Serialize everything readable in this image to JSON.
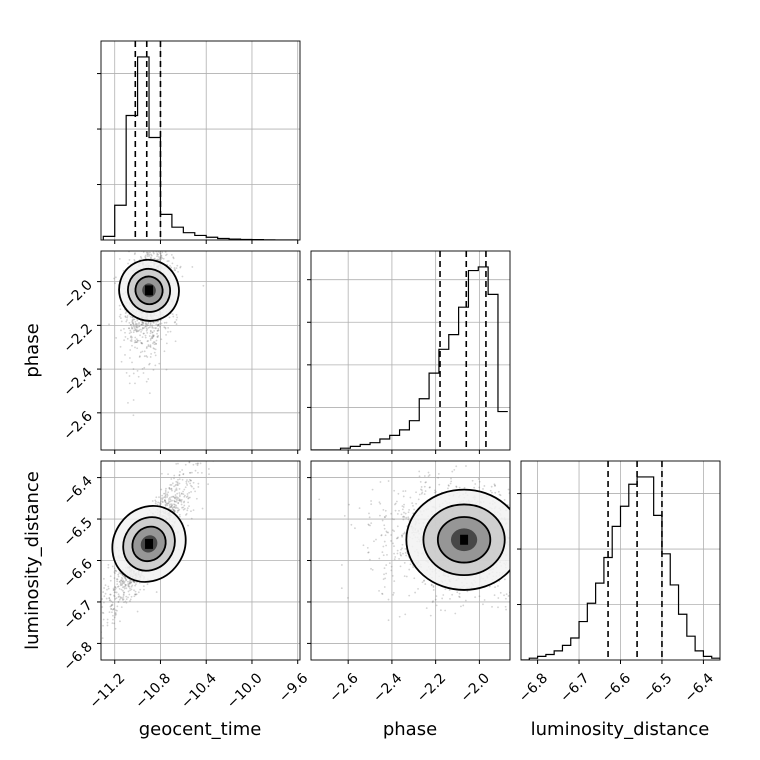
{
  "chart_data": {
    "type": "corner",
    "parameters": [
      {
        "name": "geocent_time",
        "range": [
          -11.32,
          -9.58
        ],
        "ticks": [
          -11.2,
          -10.8,
          -10.4,
          -10.0,
          -9.6
        ],
        "tick_labels": [
          "−11.2",
          "−10.8",
          "−10.4",
          "−10.0",
          "−9.6"
        ],
        "quantiles": [
          -11.02,
          -10.92,
          -10.8
        ],
        "histogram": {
          "bin_edges": [
            -11.3,
            -11.2,
            -11.1,
            -11.0,
            -10.9,
            -10.8,
            -10.7,
            -10.6,
            -10.5,
            -10.4,
            -10.3,
            -10.2,
            -10.1,
            -10.0,
            -9.9,
            -9.8,
            -9.7,
            -9.6
          ],
          "counts": [
            0.02,
            0.19,
            0.68,
            1.0,
            0.56,
            0.14,
            0.07,
            0.04,
            0.025,
            0.015,
            0.008,
            0.005,
            0.003,
            0.002,
            0.001,
            0.0,
            0.0
          ]
        },
        "diag_gridlines": 3
      },
      {
        "name": "phase",
        "range": [
          -2.77,
          -1.86
        ],
        "ticks": [
          -2.6,
          -2.4,
          -2.2,
          -2.0
        ],
        "tick_labels": [
          "−2.6",
          "−2.4",
          "−2.2",
          "−2.0"
        ],
        "quantiles": [
          -2.18,
          -2.06,
          -1.97
        ],
        "histogram": {
          "bin_edges": [
            -2.77,
            -2.725,
            -2.68,
            -2.635,
            -2.59,
            -2.545,
            -2.5,
            -2.455,
            -2.41,
            -2.365,
            -2.32,
            -2.275,
            -2.23,
            -2.185,
            -2.14,
            -2.095,
            -2.05,
            -2.005,
            -1.96,
            -1.915,
            -1.87
          ],
          "counts": [
            0.0,
            0.0,
            0.0,
            0.01,
            0.02,
            0.03,
            0.04,
            0.06,
            0.08,
            0.11,
            0.16,
            0.28,
            0.42,
            0.55,
            0.63,
            0.78,
            0.98,
            1.0,
            0.85,
            0.21
          ]
        },
        "diag_gridlines": 4
      },
      {
        "name": "luminosity_distance",
        "range": [
          -6.84,
          -6.36
        ],
        "ticks": [
          -6.8,
          -6.7,
          -6.6,
          -6.5,
          -6.4
        ],
        "tick_labels": [
          "−6.8",
          "−6.7",
          "−6.6",
          "−6.5",
          "−6.4"
        ],
        "quantiles": [
          -6.63,
          -6.56,
          -6.5
        ],
        "histogram": {
          "bin_edges": [
            -6.84,
            -6.82,
            -6.8,
            -6.78,
            -6.76,
            -6.74,
            -6.72,
            -6.7,
            -6.68,
            -6.66,
            -6.64,
            -6.62,
            -6.6,
            -6.58,
            -6.56,
            -6.54,
            -6.52,
            -6.5,
            -6.48,
            -6.46,
            -6.44,
            -6.42,
            -6.4,
            -6.38,
            -6.36
          ],
          "counts": [
            0.0,
            0.01,
            0.02,
            0.03,
            0.05,
            0.08,
            0.12,
            0.21,
            0.31,
            0.42,
            0.56,
            0.73,
            0.84,
            0.96,
            1.0,
            1.0,
            0.79,
            0.58,
            0.41,
            0.25,
            0.13,
            0.05,
            0.02,
            0.01
          ]
        },
        "diag_gridlines": 3
      }
    ],
    "pairs": [
      {
        "x": "geocent_time",
        "y": "phase",
        "mean": [
          -10.9,
          -2.04
        ],
        "std": [
          0.08,
          0.085
        ],
        "corr": 0.25,
        "tail": {
          "direction": [
            0.0,
            -1.0
          ],
          "length": 0.18
        }
      },
      {
        "x": "geocent_time",
        "y": "luminosity_distance",
        "mean": [
          -10.9,
          -6.56
        ],
        "std": [
          0.15,
          0.065
        ],
        "corr": 0.88
      },
      {
        "x": "phase",
        "y": "luminosity_distance",
        "mean": [
          -2.07,
          -6.55
        ],
        "std": [
          0.12,
          0.055
        ],
        "corr": 0.0,
        "tail": {
          "direction": [
            -1.0,
            0.0
          ],
          "length": 0.25
        }
      }
    ],
    "quantile_style": "dashed",
    "grid": true
  }
}
